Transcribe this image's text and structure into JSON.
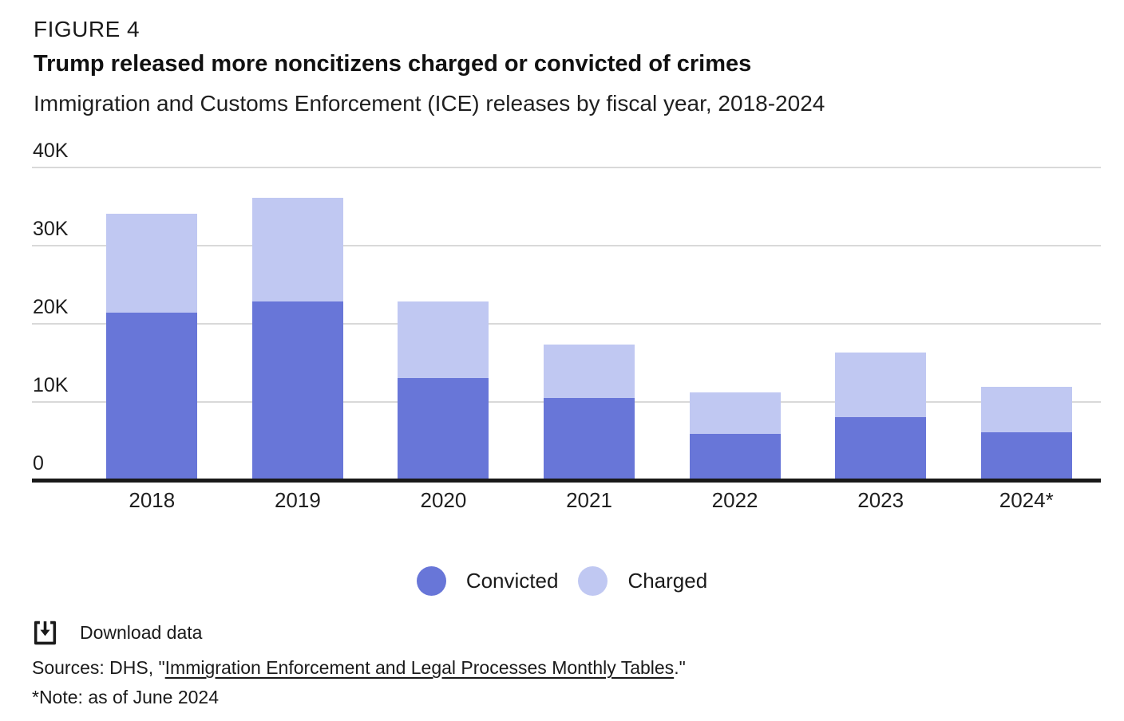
{
  "figure_label": "FIGURE 4",
  "title": "Trump released more noncitizens charged or convicted of crimes",
  "subtitle": "Immigration and Customs Enforcement (ICE) releases by fiscal year, 2018-2024",
  "chart_data": {
    "type": "bar",
    "stacked": true,
    "title": "Trump released more noncitizens charged or convicted of crimes",
    "subtitle": "Immigration and Customs Enforcement (ICE) releases by fiscal year, 2018-2024",
    "categories": [
      "2018",
      "2019",
      "2020",
      "2021",
      "2022",
      "2023",
      "2024*"
    ],
    "series": [
      {
        "name": "Convicted",
        "color": "#6876d8",
        "values": [
          21400,
          22900,
          13100,
          10500,
          5900,
          8100,
          6100
        ]
      },
      {
        "name": "Charged",
        "color": "#c0c8f2",
        "values": [
          12700,
          13200,
          9800,
          6900,
          5300,
          8200,
          5800
        ]
      }
    ],
    "totals": [
      34100,
      36100,
      22900,
      17400,
      11200,
      16300,
      11900
    ],
    "xlabel": "",
    "ylabel": "",
    "ylim": [
      0,
      40000
    ],
    "y_ticks": [
      {
        "label": "40K",
        "value": 40000
      },
      {
        "label": "30K",
        "value": 30000
      },
      {
        "label": "20K",
        "value": 20000
      },
      {
        "label": "10K",
        "value": 10000
      },
      {
        "label": "0",
        "value": 0
      }
    ],
    "grid": true,
    "legend_position": "bottom"
  },
  "colors": {
    "convicted": "#6876d8",
    "charged": "#c0c8f2",
    "gridline": "#d9d9d9",
    "axis": "#191919",
    "text": "#1a1a1a"
  },
  "footer": {
    "download_label": "Download data",
    "sources_prefix": "Sources: DHS, \"",
    "sources_link_text": "Immigration Enforcement and Legal Processes Monthly Tables",
    "sources_suffix": ".\"",
    "note": "*Note: as of June 2024"
  }
}
